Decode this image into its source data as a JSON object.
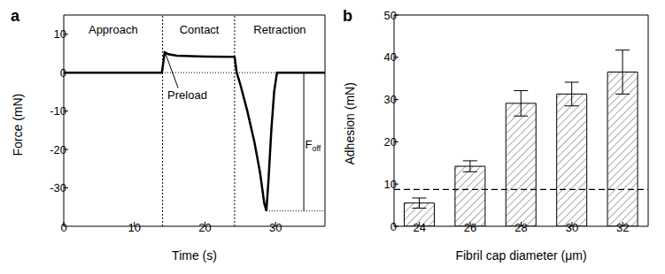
{
  "chart_data": [
    {
      "type": "line",
      "title": "a",
      "x_label": "Time (s)",
      "y_label": "Force (mN)",
      "xlim": [
        0,
        37
      ],
      "xticks": [
        0,
        10,
        20,
        30
      ],
      "ylim": [
        -40,
        15
      ],
      "yticks": [
        -30,
        -20,
        -10,
        0,
        10
      ],
      "x": [
        0,
        13.9,
        14.3,
        14.8,
        16,
        20,
        24.2,
        24.5,
        25,
        26,
        27,
        27.8,
        28.4,
        28.7,
        29,
        29.4,
        29.8,
        30.2,
        37
      ],
      "values": [
        0,
        0,
        5.3,
        4.8,
        4.4,
        4.2,
        4.1,
        0,
        -3,
        -10,
        -18,
        -26,
        -34,
        -36,
        -28,
        -15,
        -5,
        0,
        0
      ],
      "color": "#000000",
      "dividers": [
        14,
        24.2
      ],
      "zero_line": 0,
      "f_off": {
        "x": 34,
        "from": 0,
        "to": -36
      },
      "annotations": [
        {
          "text": "Approach",
          "x": 7,
          "y": 11
        },
        {
          "text": "Contact",
          "x": 19.2,
          "y": 11
        },
        {
          "text": "Retraction",
          "x": 30.6,
          "y": 11
        },
        {
          "text": "Preload",
          "x": 17.5,
          "y": -6,
          "target_x": 14.4,
          "target_y": 5
        },
        {
          "text": "Foff",
          "x": 35.3,
          "y": -19
        }
      ]
    },
    {
      "type": "bar",
      "title": "b",
      "x_label": "Fibril cap diameter (μm)",
      "y_label": "Adhesion (mN)",
      "categories": [
        "24",
        "26",
        "28",
        "30",
        "32"
      ],
      "values": [
        5.5,
        14.2,
        29.1,
        31.3,
        36.5
      ],
      "errors": [
        1.2,
        1.3,
        3,
        2.8,
        5.2
      ],
      "ylim": [
        0,
        50
      ],
      "yticks": [
        0,
        10,
        20,
        30,
        40,
        50
      ],
      "color": "#000000",
      "reference_line": 8.7
    }
  ]
}
